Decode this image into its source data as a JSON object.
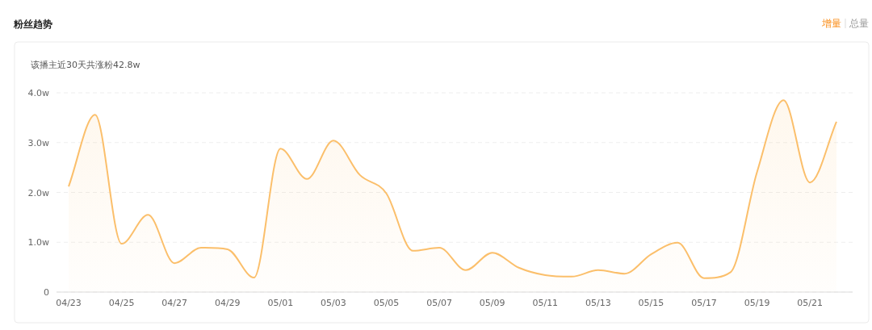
{
  "chart_data": {
    "type": "area",
    "title": "粉丝趋势",
    "subtitle": "该播主近30天共涨粉42.8w",
    "annotations": [
      "增量",
      "总量"
    ],
    "categories": [
      "04/23",
      null,
      "04/25",
      null,
      "04/27",
      null,
      "04/29",
      null,
      "05/01",
      null,
      "05/03",
      null,
      "05/05",
      null,
      "05/07",
      null,
      "05/09",
      null,
      "05/11",
      null,
      "05/13",
      null,
      "05/15",
      null,
      "05/17",
      null,
      "05/19",
      null,
      "05/21",
      null
    ],
    "values": [
      2.12,
      3.56,
      0.97,
      1.55,
      0.58,
      0.89,
      0.86,
      0.29,
      2.88,
      2.27,
      3.04,
      2.35,
      1.98,
      0.83,
      0.89,
      0.44,
      0.79,
      0.49,
      0.34,
      0.31,
      0.44,
      0.37,
      0.76,
      0.99,
      0.28,
      0.4,
      2.41,
      3.85,
      2.2,
      3.42
    ],
    "color": "#fbbf6b",
    "ylim": [
      0,
      4
    ],
    "yticks": [
      0,
      {
        "value": 1,
        "label": "1.0w"
      },
      {
        "value": 2,
        "label": "2.0w"
      },
      {
        "value": 3,
        "label": "3.0w"
      },
      {
        "value": 4,
        "label": "4.0w"
      }
    ],
    "grid": "y"
  }
}
